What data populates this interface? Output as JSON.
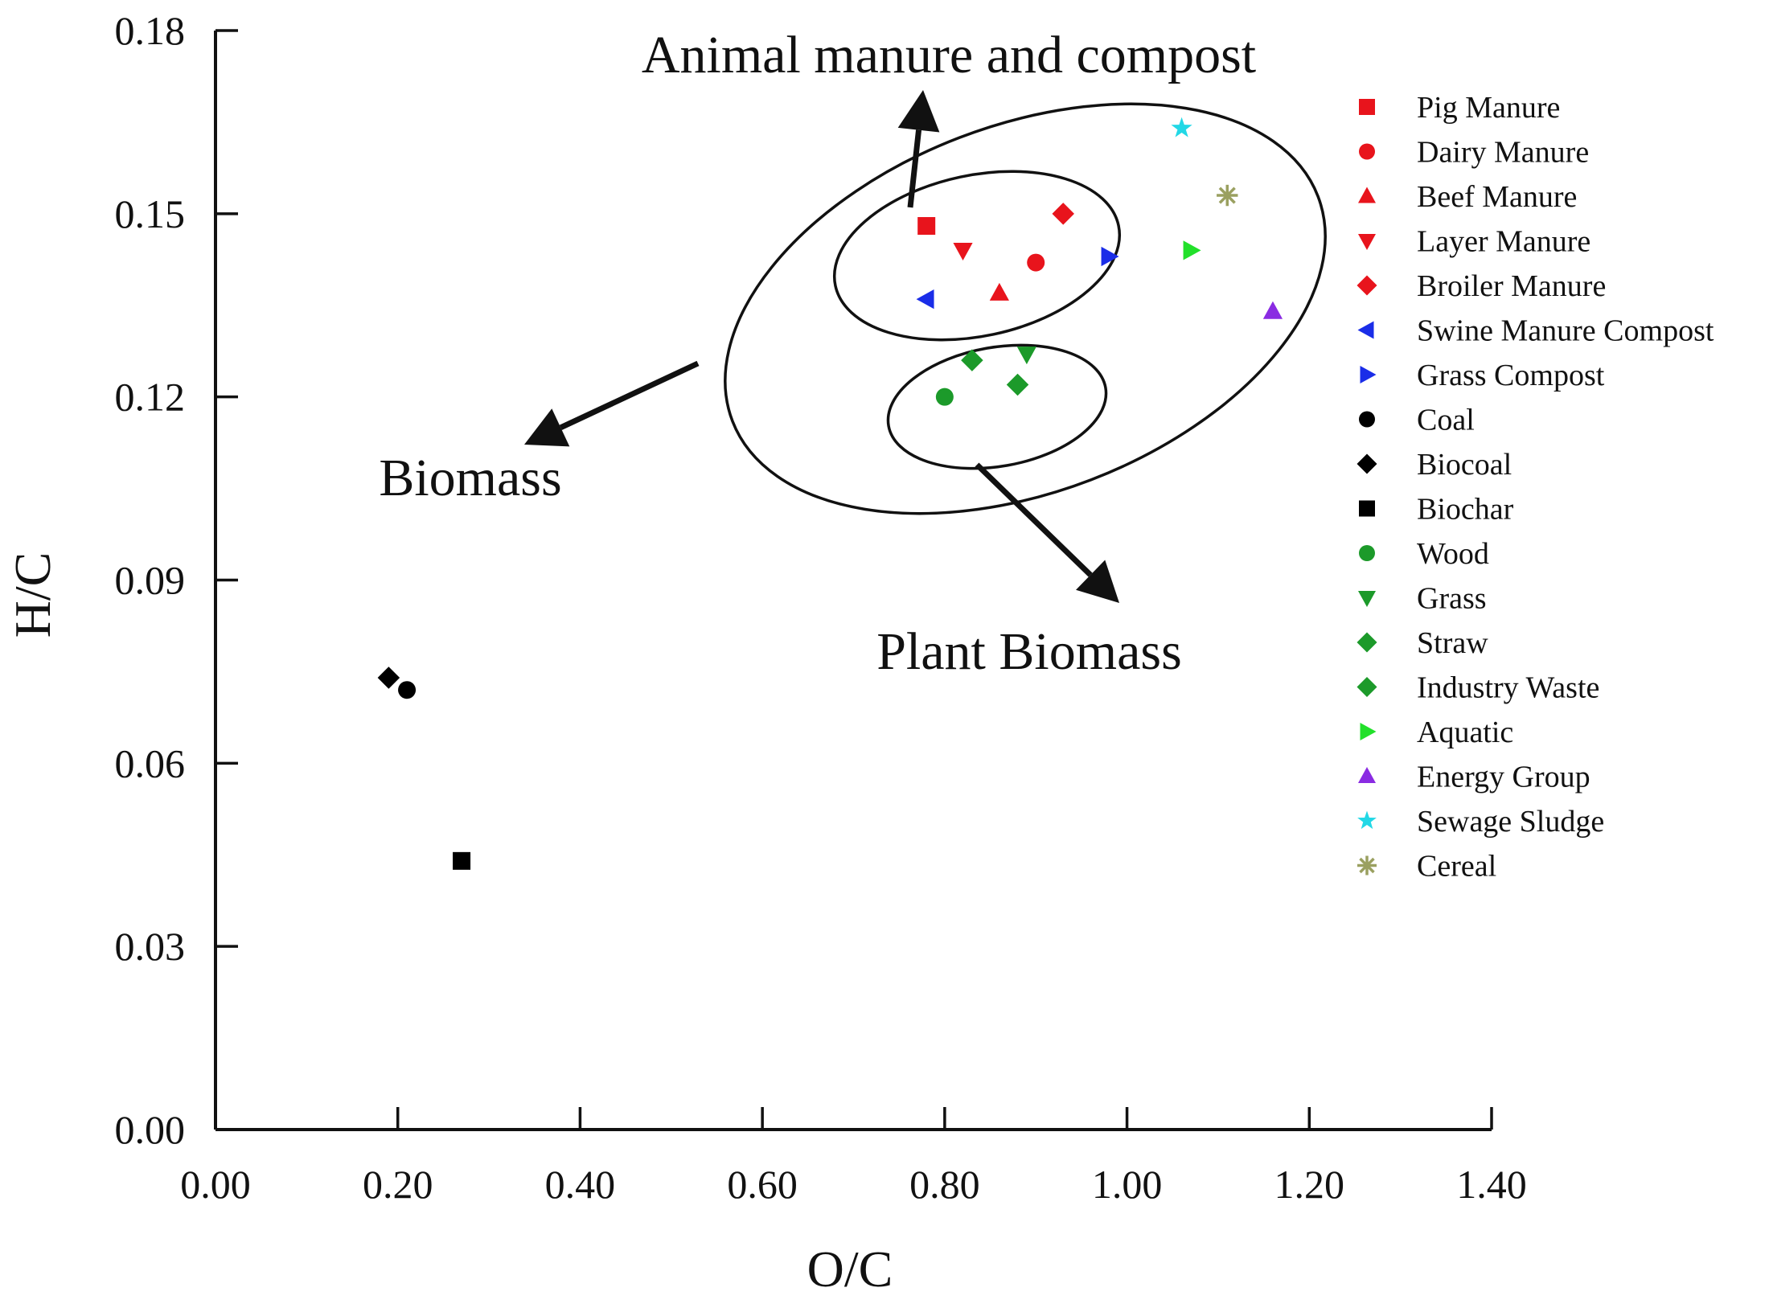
{
  "chart_data": {
    "type": "scatter",
    "xlabel": "O/C",
    "ylabel": "H/C",
    "xlim": [
      0.0,
      1.4
    ],
    "ylim": [
      0.0,
      0.18
    ],
    "x_ticks": [
      "0.00",
      "0.20",
      "0.40",
      "0.60",
      "0.80",
      "1.00",
      "1.20",
      "1.40"
    ],
    "y_ticks": [
      "0.00",
      "0.03",
      "0.06",
      "0.09",
      "0.12",
      "0.15",
      "0.18"
    ],
    "grid": false,
    "legend_position": "right",
    "annotations": [
      {
        "text": "Animal manure and compost"
      },
      {
        "text": "Biomass"
      },
      {
        "text": "Plant Biomass"
      }
    ],
    "series": [
      {
        "name": "Pig Manure",
        "marker": "square",
        "color": "#e8141c",
        "points": [
          [
            0.78,
            0.148
          ]
        ]
      },
      {
        "name": "Dairy  Manure",
        "marker": "circle",
        "color": "#e8141c",
        "points": [
          [
            0.9,
            0.142
          ]
        ]
      },
      {
        "name": "Beef Manure",
        "marker": "triangle-up",
        "color": "#e8141c",
        "points": [
          [
            0.86,
            0.137
          ]
        ]
      },
      {
        "name": "Layer Manure",
        "marker": "triangle-down",
        "color": "#e8141c",
        "points": [
          [
            0.82,
            0.144
          ]
        ]
      },
      {
        "name": "Broiler Manure",
        "marker": "diamond",
        "color": "#e8141c",
        "points": [
          [
            0.93,
            0.15
          ]
        ]
      },
      {
        "name": "Swine  Manure Compost",
        "marker": "triangle-left",
        "color": "#1a2de8",
        "points": [
          [
            0.78,
            0.136
          ]
        ]
      },
      {
        "name": "Grass Compost",
        "marker": "triangle-right",
        "color": "#1a2de8",
        "points": [
          [
            0.98,
            0.143
          ]
        ]
      },
      {
        "name": "Coal",
        "marker": "circle",
        "color": "#000000",
        "points": [
          [
            0.21,
            0.072
          ]
        ]
      },
      {
        "name": "Biocoal",
        "marker": "diamond",
        "color": "#000000",
        "points": [
          [
            0.19,
            0.074
          ]
        ]
      },
      {
        "name": "Biochar",
        "marker": "square",
        "color": "#000000",
        "points": [
          [
            0.27,
            0.044
          ]
        ]
      },
      {
        "name": "Wood",
        "marker": "circle",
        "color": "#1c9a2a",
        "points": [
          [
            0.8,
            0.12
          ]
        ]
      },
      {
        "name": "Grass",
        "marker": "triangle-down",
        "color": "#1c9a2a",
        "points": [
          [
            0.89,
            0.127
          ]
        ]
      },
      {
        "name": "Straw",
        "marker": "diamond",
        "color": "#1c9a2a",
        "points": [
          [
            0.83,
            0.126
          ]
        ]
      },
      {
        "name": "Industry Waste",
        "marker": "diamond",
        "color": "#1c9a2a",
        "points": [
          [
            0.88,
            0.122
          ]
        ]
      },
      {
        "name": "Aquatic",
        "marker": "triangle-right",
        "color": "#22e02a",
        "points": [
          [
            1.07,
            0.144
          ]
        ]
      },
      {
        "name": "Energy Group",
        "marker": "triangle-up",
        "color": "#8a2be2",
        "points": [
          [
            1.16,
            0.134
          ]
        ]
      },
      {
        "name": "Sewage Sludge",
        "marker": "star",
        "color": "#22d8e6",
        "points": [
          [
            1.06,
            0.164
          ]
        ]
      },
      {
        "name": "Cereal",
        "marker": "asterisk",
        "color": "#9aa060",
        "points": [
          [
            1.11,
            0.153
          ]
        ]
      }
    ]
  }
}
